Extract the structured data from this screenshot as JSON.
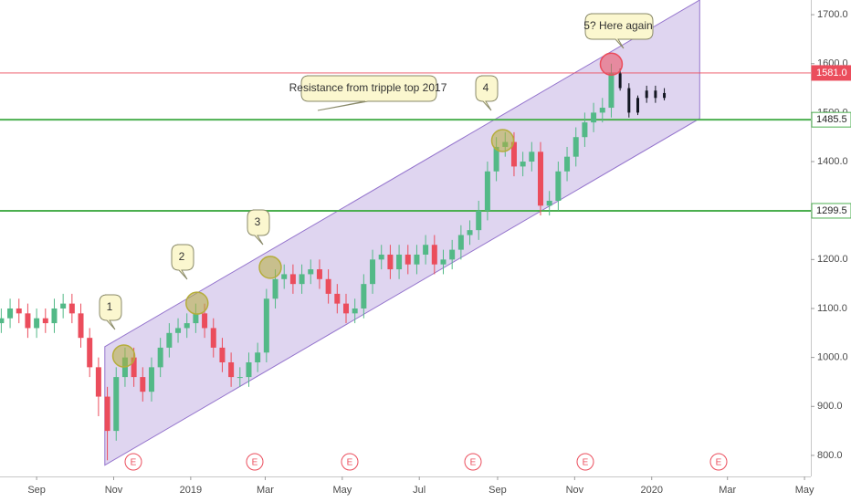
{
  "chart_data": {
    "type": "candlestick",
    "x": [
      -28,
      -21,
      -14,
      -7,
      0,
      7,
      14,
      21,
      28,
      35,
      42,
      49,
      56,
      63,
      70,
      77,
      84,
      91,
      98,
      105,
      112,
      119,
      126,
      133,
      140,
      147,
      154,
      161,
      168,
      175,
      182,
      189,
      196,
      203,
      210,
      217,
      224,
      231,
      238,
      245,
      252,
      259,
      266,
      273,
      280,
      287,
      294,
      301,
      308,
      315,
      322,
      329,
      336,
      343,
      350,
      357,
      364,
      371,
      378,
      385,
      392,
      399,
      406,
      413,
      420,
      427,
      434,
      441,
      448,
      455
    ],
    "open": [
      1070,
      1080,
      1100,
      1090,
      1060,
      1080,
      1070,
      1100,
      1110,
      1090,
      1040,
      980,
      920,
      850,
      960,
      1000,
      960,
      930,
      980,
      1020,
      1050,
      1060,
      1070,
      1090,
      1060,
      1020,
      990,
      960,
      960,
      990,
      1010,
      1120,
      1160,
      1170,
      1150,
      1170,
      1180,
      1160,
      1130,
      1110,
      1090,
      1100,
      1150,
      1200,
      1210,
      1180,
      1210,
      1190,
      1210,
      1230,
      1190,
      1200,
      1220,
      1250,
      1260,
      1300,
      1380,
      1430,
      1440,
      1390,
      1400,
      1420,
      1310,
      1320,
      1380,
      1410,
      1450,
      1480,
      1500,
      1510
    ],
    "high": [
      1100,
      1120,
      1120,
      1110,
      1100,
      1100,
      1120,
      1130,
      1130,
      1110,
      1060,
      1000,
      940,
      980,
      1020,
      1020,
      980,
      1000,
      1040,
      1070,
      1080,
      1090,
      1110,
      1110,
      1080,
      1040,
      1010,
      980,
      1010,
      1030,
      1140,
      1180,
      1190,
      1190,
      1190,
      1200,
      1200,
      1180,
      1150,
      1130,
      1120,
      1170,
      1220,
      1230,
      1230,
      1230,
      1230,
      1230,
      1250,
      1250,
      1220,
      1240,
      1270,
      1280,
      1320,
      1400,
      1450,
      1460,
      1460,
      1420,
      1440,
      1440,
      1340,
      1400,
      1430,
      1470,
      1500,
      1520,
      1530,
      1600
    ],
    "low": [
      1050,
      1060,
      1070,
      1040,
      1040,
      1050,
      1050,
      1080,
      1070,
      1020,
      960,
      880,
      790,
      830,
      940,
      940,
      910,
      910,
      960,
      1000,
      1030,
      1040,
      1050,
      1040,
      1000,
      970,
      940,
      940,
      940,
      970,
      990,
      1100,
      1140,
      1130,
      1130,
      1150,
      1140,
      1110,
      1090,
      1070,
      1070,
      1080,
      1130,
      1180,
      1160,
      1160,
      1170,
      1170,
      1190,
      1170,
      1170,
      1180,
      1200,
      1230,
      1240,
      1280,
      1360,
      1410,
      1370,
      1370,
      1380,
      1290,
      1290,
      1300,
      1360,
      1390,
      1430,
      1460,
      1480,
      1490
    ],
    "close": [
      1080,
      1100,
      1090,
      1060,
      1080,
      1070,
      1100,
      1110,
      1090,
      1040,
      980,
      920,
      850,
      960,
      1000,
      960,
      930,
      980,
      1020,
      1050,
      1060,
      1070,
      1090,
      1060,
      1020,
      990,
      960,
      960,
      990,
      1010,
      1120,
      1160,
      1170,
      1150,
      1170,
      1180,
      1160,
      1130,
      1110,
      1090,
      1100,
      1150,
      1200,
      1210,
      1180,
      1210,
      1190,
      1210,
      1230,
      1190,
      1200,
      1220,
      1250,
      1260,
      1300,
      1380,
      1430,
      1440,
      1390,
      1400,
      1420,
      1310,
      1320,
      1380,
      1410,
      1450,
      1480,
      1500,
      1510,
      1580
    ],
    "up_color": "#53b987",
    "down_color": "#eb4d5c",
    "projection": {
      "color": "#131722",
      "x": [
        462,
        469,
        476,
        483,
        490,
        497
      ],
      "open": [
        1580,
        1550,
        1500,
        1530,
        1545,
        1530
      ],
      "high": [
        1590,
        1560,
        1535,
        1555,
        1555,
        1550
      ],
      "low": [
        1545,
        1490,
        1495,
        1520,
        1520,
        1525
      ],
      "close": [
        1550,
        1500,
        1530,
        1545,
        1530,
        1540
      ]
    },
    "channel": {
      "x": [
        54,
        525
      ],
      "upper": [
        1022,
        1730
      ],
      "lower": [
        780,
        1488
      ],
      "color": "#9575cd"
    },
    "levels": [
      {
        "value": 1581.0,
        "label": "1581.0",
        "color": "#eb4d5c"
      },
      {
        "value": 1485.5,
        "label": "1485.5",
        "color": "#4caf50"
      },
      {
        "value": 1299.5,
        "label": "1299.5",
        "color": "#4caf50"
      }
    ],
    "highlights": {
      "x": [
        69,
        127,
        185,
        369,
        455
      ],
      "y": [
        1003,
        1111,
        1184,
        1443,
        1599
      ],
      "colors": [
        "#b5ad3c",
        "#b5ad3c",
        "#b5ad3c",
        "#b5ad3c",
        "#eb4d5c"
      ]
    },
    "callouts": [
      "1",
      "2",
      "3",
      "Resistance from tripple top 2017",
      "4",
      "5? Here again"
    ],
    "events": [
      "E",
      "E",
      "E",
      "E",
      "E",
      "E"
    ],
    "xlim": [
      -29,
      613
    ],
    "ylim": [
      757,
      1730
    ],
    "xticks": [
      {
        "value": 0,
        "label": "Sep"
      },
      {
        "value": 61,
        "label": "Nov"
      },
      {
        "value": 122,
        "label": "2019"
      },
      {
        "value": 181,
        "label": "Mar"
      },
      {
        "value": 242,
        "label": "May"
      },
      {
        "value": 303,
        "label": "Jul"
      },
      {
        "value": 365,
        "label": "Sep"
      },
      {
        "value": 426,
        "label": "Nov"
      },
      {
        "value": 487,
        "label": "2020"
      },
      {
        "value": 547,
        "label": "Mar"
      },
      {
        "value": 608,
        "label": "May"
      }
    ],
    "yticks": [
      {
        "value": 800,
        "label": "800.0"
      },
      {
        "value": 900,
        "label": "900.0"
      },
      {
        "value": 1000,
        "label": "1000.0"
      },
      {
        "value": 1100,
        "label": "1100.0"
      },
      {
        "value": 1200,
        "label": "1200.0"
      },
      {
        "value": 1300,
        "label": "1300.0"
      },
      {
        "value": 1400,
        "label": "1400.0"
      },
      {
        "value": 1500,
        "label": "1500.0"
      },
      {
        "value": 1600,
        "label": "1600.0"
      },
      {
        "value": 1700,
        "label": "1700.0"
      }
    ]
  }
}
